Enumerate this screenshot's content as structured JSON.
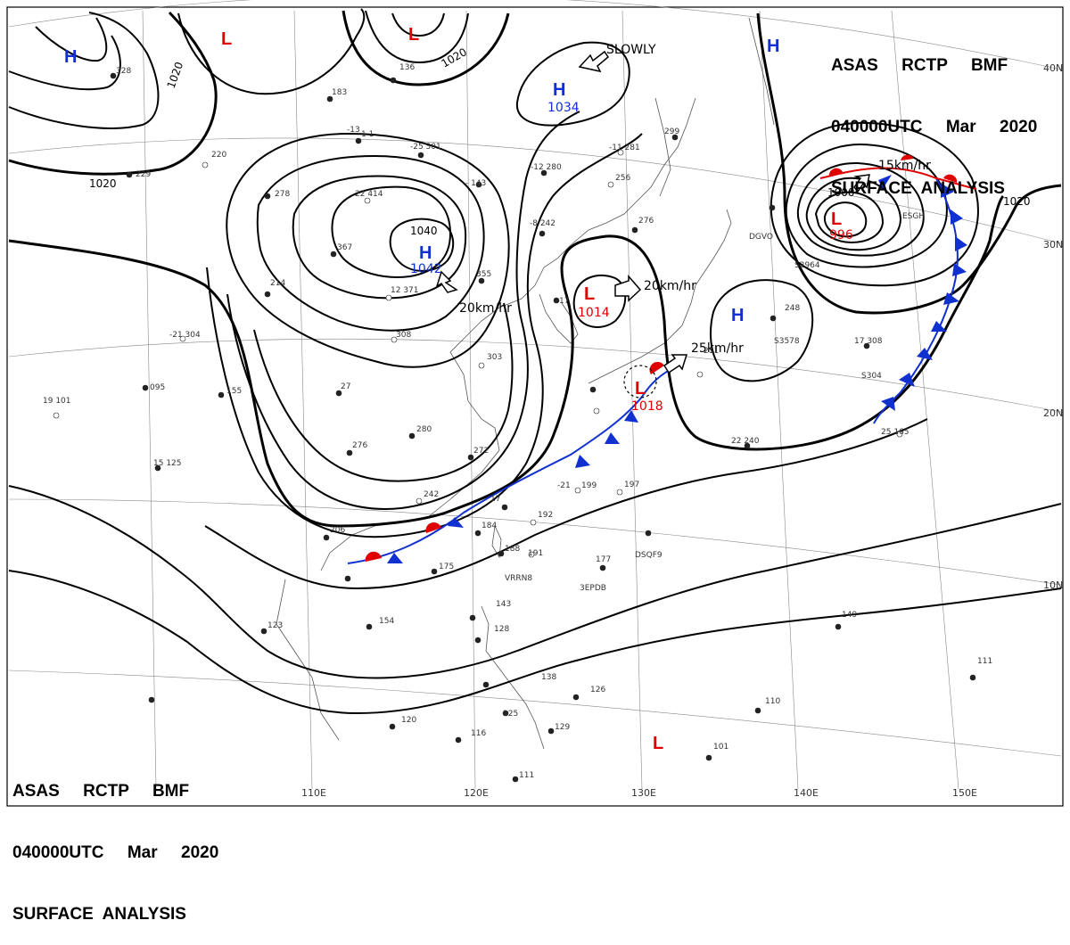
{
  "header": {
    "line1": "ASAS     RCTP     BMF",
    "line2": "040000UTC     Mar     2020",
    "line3": "SURFACE  ANALYSIS"
  },
  "pressure_centers": [
    {
      "type": "H",
      "value": ""
    },
    {
      "type": "L",
      "value": ""
    },
    {
      "type": "L",
      "value": ""
    },
    {
      "type": "H",
      "value": "1034"
    },
    {
      "type": "H",
      "value": ""
    },
    {
      "type": "H",
      "value": "1042"
    },
    {
      "type": "L",
      "value": "1014"
    },
    {
      "type": "H",
      "value": ""
    },
    {
      "type": "L",
      "value": "1018"
    },
    {
      "type": "L",
      "value": "996"
    },
    {
      "type": "L",
      "value": ""
    }
  ],
  "isobar_labels": [
    "1020",
    "1020",
    "1020",
    "1020",
    "1040",
    "1000"
  ],
  "motions": [
    "SLOWLY",
    "20km/hr",
    "20km/hr",
    "25km/hr",
    "15km/hr"
  ],
  "coordinates": {
    "lon": [
      "110E",
      "120E",
      "130E",
      "140E",
      "150E"
    ],
    "lat": [
      "40N",
      "30N",
      "20N",
      "10N"
    ]
  },
  "stations": [
    "229",
    "328",
    "183",
    "136",
    "1 1",
    "220",
    "278",
    "22 414",
    "367",
    "-25 301",
    "-13",
    "- 143",
    "-12 280",
    "-11 281",
    "299",
    "256",
    "-8 242",
    "276",
    "12 371",
    "355",
    "17",
    "214",
    "-21 304",
    "095",
    "155",
    "27",
    "308",
    "303",
    "211",
    "248",
    "17 308",
    "280",
    "276",
    "272",
    "242",
    "-21",
    "199",
    "197",
    "17 ",
    "192",
    "206",
    "184",
    "188",
    "191",
    "175",
    "177",
    "DSQF9",
    "VRRN8",
    "3EPDB",
    "154",
    "123",
    "143",
    "128",
    "138",
    "126",
    "120",
    "129",
    "125",
    "116",
    "111",
    "101",
    "149",
    "110",
    "111 ",
    "19 101",
    "15 125",
    "22 240",
    "25 165",
    "DGVO",
    "S2964",
    "S3578",
    "S304",
    "ESGH"
  ]
}
